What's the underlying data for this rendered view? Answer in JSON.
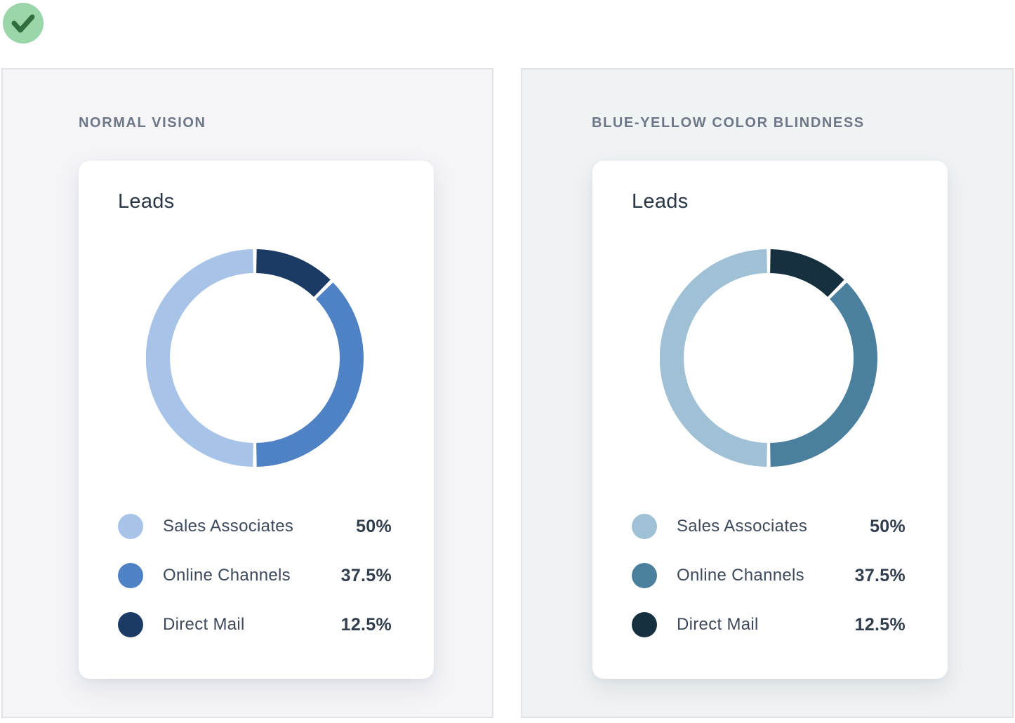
{
  "status_badge": {
    "icon": "check",
    "circle_color": "#9bd6a9",
    "check_color": "#2e6f3d"
  },
  "chart_data": [
    {
      "type": "pie",
      "variant": "donut",
      "title": "Leads",
      "panel_label": "NORMAL VISION",
      "categories": [
        "Sales Associates",
        "Online Channels",
        "Direct Mail"
      ],
      "values": [
        50,
        37.5,
        12.5
      ],
      "value_labels": [
        "50%",
        "37.5%",
        "12.5%"
      ],
      "colors": [
        "#a7c4e8",
        "#4f81c5",
        "#1b3a64"
      ],
      "start_angle_deg": -90,
      "clockwise_order": [
        "Direct Mail",
        "Online Channels",
        "Sales Associates"
      ],
      "legend_position": "bottom",
      "hole": true
    },
    {
      "type": "pie",
      "variant": "donut",
      "title": "Leads",
      "panel_label": "BLUE-YELLOW COLOR BLINDNESS",
      "categories": [
        "Sales Associates",
        "Online Channels",
        "Direct Mail"
      ],
      "values": [
        50,
        37.5,
        12.5
      ],
      "value_labels": [
        "50%",
        "37.5%",
        "12.5%"
      ],
      "colors": [
        "#9fc0d5",
        "#4a7f9e",
        "#16303f"
      ],
      "start_angle_deg": -90,
      "clockwise_order": [
        "Direct Mail",
        "Online Channels",
        "Sales Associates"
      ],
      "legend_position": "bottom",
      "hole": true
    }
  ],
  "panels": [
    {
      "header": "NORMAL VISION",
      "card": {
        "title": "Leads",
        "legend": [
          {
            "label": "Sales Associates",
            "value": "50%",
            "color": "#a7c4e8"
          },
          {
            "label": "Online Channels",
            "value": "37.5%",
            "color": "#4f81c5"
          },
          {
            "label": "Direct Mail",
            "value": "12.5%",
            "color": "#1b3a64"
          }
        ]
      }
    },
    {
      "header": "BLUE-YELLOW COLOR BLINDNESS",
      "card": {
        "title": "Leads",
        "legend": [
          {
            "label": "Sales Associates",
            "value": "50%",
            "color": "#9fc0d5"
          },
          {
            "label": "Online Channels",
            "value": "37.5%",
            "color": "#4a7f9e"
          },
          {
            "label": "Direct Mail",
            "value": "12.5%",
            "color": "#16303f"
          }
        ]
      }
    }
  ]
}
